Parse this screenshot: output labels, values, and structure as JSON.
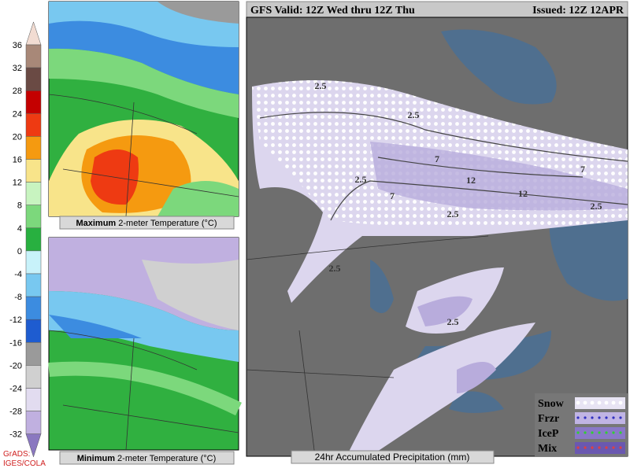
{
  "colorbar": {
    "ticks": [
      36,
      32,
      28,
      24,
      20,
      16,
      12,
      8,
      4,
      0,
      -4,
      -8,
      -12,
      -16,
      -20,
      -24,
      -28,
      -32
    ],
    "colors": [
      "#f2dcd2",
      "#a88878",
      "#6a4a44",
      "#c40000",
      "#ee3a12",
      "#f59a10",
      "#f8e48a",
      "#c8f4c0",
      "#7cd87c",
      "#28b040",
      "#c8f2fa",
      "#78c8f0",
      "#3c8ce0",
      "#1e5cd0",
      "#9a9a9a",
      "#d0d0d0",
      "#e2dcf0",
      "#c0b0e0",
      "#8a78c0"
    ]
  },
  "credit": "GrADS: IGES/COLA",
  "panels": [
    {
      "bold": "Maximum",
      "text": "2-meter Temperature (°C)"
    },
    {
      "bold": "Minimum",
      "text": "2-meter Temperature (°C)"
    }
  ],
  "main": {
    "valid": "GFS Valid: 12Z Wed thru 12Z Thu",
    "issued": "Issued: 12Z 12APR",
    "caption": "24hr Accumulated Precipitation (mm)",
    "contour_labels": [
      2.5,
      2.5,
      2.5,
      7,
      7,
      7,
      12,
      12,
      2.5,
      2.5,
      2.5,
      2.5
    ],
    "legend": [
      {
        "name": "Snow",
        "color": "#ffffff"
      },
      {
        "name": "Frzr",
        "color": "#3030c0"
      },
      {
        "name": "IceP",
        "color": "#30d030"
      },
      {
        "name": "Mix",
        "color": "#e04040"
      }
    ]
  }
}
